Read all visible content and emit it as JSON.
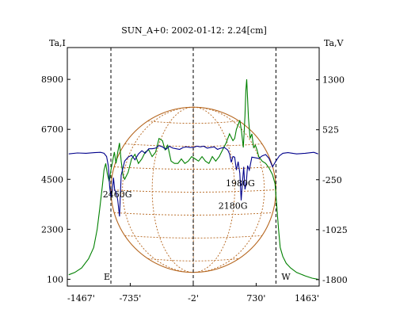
{
  "chart_data": {
    "type": "line",
    "title": "SUN_A+0: 2002-01-12: 2.24[cm]",
    "left_axis": {
      "label": "Ta,I",
      "ticks": [
        100,
        2300,
        4500,
        6700,
        8900
      ],
      "ylim": [
        -200,
        10300
      ]
    },
    "right_axis": {
      "label": "Ta,V",
      "ticks": [
        "1300",
        "525",
        "-250",
        "-1025",
        "-1800"
      ],
      "tick_values": [
        1300,
        525,
        -250,
        -1025,
        -1800
      ],
      "ylim": [
        -1900,
        1800
      ]
    },
    "x_axis": {
      "ticks": [
        "-1467'",
        "-735'",
        "-2'",
        "730'",
        "1463'"
      ],
      "tick_values": [
        -1467,
        -735,
        -2,
        730,
        1463
      ],
      "xlim": [
        -1467,
        1463
      ]
    },
    "vertical_markers": [
      {
        "x": -960,
        "label": "E"
      },
      {
        "x": -2,
        "label": ""
      },
      {
        "x": 960,
        "label": "W"
      }
    ],
    "solar_disk": {
      "radius": 960,
      "center_y": 4040
    },
    "annotations": [
      {
        "text": "2460G",
        "x": -885,
        "y": 3700
      },
      {
        "text": "1980G",
        "x": 545,
        "y": 4200
      },
      {
        "text": "2180G",
        "x": 460,
        "y": 3200
      }
    ],
    "series": [
      {
        "axis": "left",
        "color": "#008000",
        "x": [
          -1450,
          -1380,
          -1300,
          -1220,
          -1160,
          -1120,
          -1090,
          -1060,
          -1040,
          -1020,
          -1000,
          -980,
          -960,
          -940,
          -920,
          -900,
          -880,
          -860,
          -840,
          -820,
          -800,
          -760,
          -720,
          -680,
          -640,
          -600,
          -560,
          -520,
          -480,
          -440,
          -400,
          -360,
          -330,
          -300,
          -260,
          -220,
          -180,
          -140,
          -100,
          -60,
          -20,
          20,
          60,
          100,
          140,
          180,
          220,
          260,
          300,
          340,
          380,
          420,
          460,
          480,
          500,
          520,
          540,
          560,
          580,
          590,
          600,
          610,
          620,
          640,
          660,
          680,
          700,
          720,
          740,
          760,
          800,
          840,
          880,
          920,
          950,
          970,
          990,
          1010,
          1040,
          1080,
          1130,
          1200,
          1300,
          1380,
          1450
        ],
        "y": [
          300,
          400,
          600,
          1000,
          1500,
          2300,
          3200,
          4200,
          4900,
          5200,
          4700,
          4400,
          4900,
          5300,
          5700,
          5200,
          5700,
          6100,
          5300,
          4700,
          4500,
          4800,
          5400,
          5600,
          5200,
          5400,
          5700,
          5800,
          5500,
          5700,
          6300,
          6200,
          5800,
          6000,
          5300,
          5200,
          5200,
          5400,
          5200,
          5300,
          5500,
          5400,
          5300,
          5500,
          5300,
          5200,
          5500,
          5300,
          5500,
          5800,
          6100,
          6500,
          6200,
          6300,
          6700,
          6900,
          7100,
          6600,
          5900,
          6600,
          7300,
          8400,
          8900,
          7200,
          6300,
          6500,
          5900,
          6000,
          5800,
          5500,
          5300,
          5200,
          5000,
          4700,
          4300,
          3300,
          2300,
          1500,
          1100,
          800,
          600,
          400,
          250,
          150,
          100
        ]
      },
      {
        "axis": "right",
        "color": "#00008b",
        "x": [
          -1450,
          -1350,
          -1250,
          -1150,
          -1080,
          -1040,
          -1010,
          -990,
          -975,
          -960,
          -945,
          -930,
          -915,
          -900,
          -880,
          -860,
          -840,
          -800,
          -760,
          -720,
          -680,
          -640,
          -600,
          -560,
          -520,
          -480,
          -440,
          -400,
          -360,
          -320,
          -280,
          -240,
          -200,
          -160,
          -120,
          -80,
          -40,
          0,
          40,
          80,
          120,
          160,
          200,
          240,
          280,
          320,
          360,
          400,
          420,
          440,
          460,
          480,
          500,
          520,
          540,
          555,
          570,
          585,
          600,
          615,
          630,
          650,
          680,
          720,
          760,
          800,
          840,
          880,
          920,
          960,
          1000,
          1040,
          1100,
          1200,
          1300,
          1400,
          1450
        ],
        "y": [
          150,
          165,
          160,
          170,
          175,
          160,
          110,
          -40,
          -350,
          -520,
          -430,
          -220,
          -420,
          -430,
          -570,
          -820,
          -180,
          40,
          100,
          130,
          60,
          150,
          200,
          160,
          230,
          230,
          240,
          280,
          260,
          220,
          270,
          240,
          230,
          220,
          250,
          260,
          250,
          250,
          270,
          260,
          270,
          240,
          250,
          260,
          220,
          240,
          250,
          210,
          150,
          20,
          110,
          100,
          -100,
          30,
          -150,
          -570,
          -300,
          -50,
          -400,
          -300,
          -30,
          -100,
          100,
          90,
          80,
          120,
          140,
          80,
          -50,
          40,
          120,
          160,
          170,
          150,
          160,
          175,
          150
        ]
      }
    ]
  }
}
